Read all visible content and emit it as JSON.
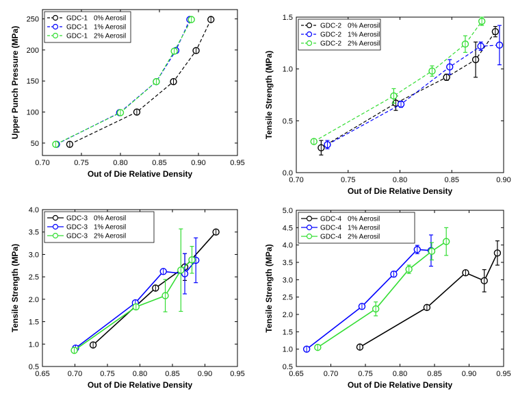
{
  "chart_data": [
    {
      "type": "line",
      "xlabel": "Out of Die Relative Density",
      "ylabel": "Upper Punch Pressure (MPa)",
      "xlim": [
        0.7,
        0.95
      ],
      "ylim": [
        30,
        265
      ],
      "xticks": [
        "0.70",
        "0.75",
        "0.80",
        "0.85",
        "0.90",
        "0.95"
      ],
      "xtick_values": [
        0.7,
        0.75,
        0.8,
        0.85,
        0.9,
        0.95
      ],
      "yticks": [
        "50",
        "100",
        "150",
        "200",
        "250"
      ],
      "ytick_values": [
        50,
        100,
        150,
        200,
        250
      ],
      "legend_placement": "top-left",
      "dashed": true,
      "series": [
        {
          "name": "GDC-1",
          "label": "0% Aerosil",
          "color": "#000000",
          "x": [
            0.735,
            0.821,
            0.868,
            0.897,
            0.916
          ],
          "y": [
            48,
            100,
            149,
            199,
            249
          ]
        },
        {
          "name": "GDC-1",
          "label": "1% Aerosil",
          "color": "#0000ff",
          "x": [
            0.718,
            0.799,
            0.846,
            0.871,
            0.889
          ],
          "y": [
            48,
            99,
            149,
            199,
            249
          ]
        },
        {
          "name": "GDC-1",
          "label": "2% Aerosil",
          "color": "#33dd33",
          "x": [
            0.717,
            0.8,
            0.846,
            0.869,
            0.891
          ],
          "y": [
            48,
            99,
            149,
            198,
            249
          ]
        }
      ]
    },
    {
      "type": "line",
      "xlabel": "Out of Die Relative Density",
      "ylabel": "Tensile Strength (MPa)",
      "xlim": [
        0.7,
        0.9
      ],
      "ylim": [
        0.0,
        1.5
      ],
      "xticks": [
        "0.70",
        "0.75",
        "0.80",
        "0.85",
        "0.90"
      ],
      "xtick_values": [
        0.7,
        0.75,
        0.8,
        0.85,
        0.9
      ],
      "yticks": [
        "0.0",
        "0.5",
        "1.0",
        "1.5"
      ],
      "ytick_values": [
        0.0,
        0.5,
        1.0,
        1.5
      ],
      "legend_placement": "top-left",
      "dashed": true,
      "series": [
        {
          "name": "GDC-2",
          "label": "0% Aerosil",
          "color": "#000000",
          "x": [
            0.724,
            0.796,
            0.845,
            0.873,
            0.892
          ],
          "y": [
            0.24,
            0.67,
            0.92,
            1.09,
            1.36
          ],
          "err": [
            0.07,
            0.07,
            0.03,
            0.17,
            0.05
          ]
        },
        {
          "name": "GDC-2",
          "label": "1% Aerosil",
          "color": "#0000ff",
          "x": [
            0.73,
            0.801,
            0.848,
            0.878,
            0.896
          ],
          "y": [
            0.27,
            0.66,
            1.02,
            1.22,
            1.23
          ],
          "err": [
            0.04,
            0.03,
            0.07,
            0.04,
            0.19
          ]
        },
        {
          "name": "GDC-2",
          "label": "2% Aerosil",
          "color": "#33dd33",
          "x": [
            0.717,
            0.794,
            0.831,
            0.863,
            0.879
          ],
          "y": [
            0.3,
            0.74,
            0.98,
            1.24,
            1.46
          ],
          "err": [
            0.01,
            0.07,
            0.05,
            0.08,
            0.04
          ]
        }
      ]
    },
    {
      "type": "line",
      "xlabel": "Out of Die Relative Density",
      "ylabel": "Tensile Strength (MPa)",
      "xlim": [
        0.65,
        0.95
      ],
      "ylim": [
        0.5,
        4.0
      ],
      "xticks": [
        "0.65",
        "0.70",
        "0.75",
        "0.80",
        "0.85",
        "0.90",
        "0.95"
      ],
      "xtick_values": [
        0.65,
        0.7,
        0.75,
        0.8,
        0.85,
        0.9,
        0.95
      ],
      "yticks": [
        "0.5",
        "1.0",
        "1.5",
        "2.0",
        "2.5",
        "3.0",
        "3.5",
        "4.0"
      ],
      "ytick_values": [
        0.5,
        1.0,
        1.5,
        2.0,
        2.5,
        3.0,
        3.5,
        4.0
      ],
      "legend_placement": "top-left",
      "dashed": false,
      "series": [
        {
          "name": "GDC-3",
          "label": "0% Aerosil",
          "color": "#000000",
          "x": [
            0.728,
            0.824,
            0.869,
            0.917
          ],
          "y": [
            0.98,
            2.25,
            2.72,
            3.5
          ],
          "err": [
            0.03,
            0.03,
            0.3,
            0.03
          ]
        },
        {
          "name": "GDC-3",
          "label": "1% Aerosil",
          "color": "#0000ff",
          "x": [
            0.701,
            0.793,
            0.836,
            0.869,
            0.886
          ],
          "y": [
            0.91,
            1.92,
            2.62,
            2.57,
            2.87
          ],
          "err": [
            0.03,
            0.05,
            0.05,
            0.45,
            0.5
          ]
        },
        {
          "name": "GDC-3",
          "label": "2% Aerosil",
          "color": "#33dd33",
          "x": [
            0.699,
            0.794,
            0.839,
            0.863,
            0.88
          ],
          "y": [
            0.86,
            1.83,
            2.08,
            2.65,
            2.88
          ],
          "err": [
            0.03,
            0.05,
            0.36,
            0.92,
            0.3
          ]
        }
      ]
    },
    {
      "type": "line",
      "xlabel": "Out of Die Relative Density",
      "ylabel": "Tensile Strength (MPa)",
      "xlim": [
        0.65,
        0.95
      ],
      "ylim": [
        0.5,
        5.0
      ],
      "xticks": [
        "0.65",
        "0.70",
        "0.75",
        "0.80",
        "0.85",
        "0.90",
        "0.95"
      ],
      "xtick_values": [
        0.65,
        0.7,
        0.75,
        0.8,
        0.85,
        0.9,
        0.95
      ],
      "yticks": [
        "0.5",
        "1.0",
        "1.5",
        "2.0",
        "2.5",
        "3.0",
        "3.5",
        "4.0",
        "4.5",
        "5.0"
      ],
      "ytick_values": [
        0.5,
        1.0,
        1.5,
        2.0,
        2.5,
        3.0,
        3.5,
        4.0,
        4.5,
        5.0
      ],
      "legend_placement": "top-left",
      "dashed": false,
      "series": [
        {
          "name": "GDC-4",
          "label": "0% Aerosil",
          "color": "#000000",
          "x": [
            0.742,
            0.839,
            0.895,
            0.922,
            0.941
          ],
          "y": [
            1.06,
            2.2,
            3.2,
            2.97,
            3.77
          ],
          "err": [
            0.02,
            0.03,
            0.05,
            0.32,
            0.35
          ]
        },
        {
          "name": "GDC-4",
          "label": "1% Aerosil",
          "color": "#0000ff",
          "x": [
            0.665,
            0.745,
            0.791,
            0.825,
            0.845
          ],
          "y": [
            1.0,
            2.23,
            3.16,
            3.87,
            3.84
          ],
          "err": [
            0.02,
            0.06,
            0.08,
            0.12,
            0.45
          ]
        },
        {
          "name": "GDC-4",
          "label": "2% Aerosil",
          "color": "#33dd33",
          "x": [
            0.681,
            0.765,
            0.813,
            0.846,
            0.867
          ],
          "y": [
            1.05,
            2.16,
            3.3,
            3.82,
            4.1
          ],
          "err": [
            0.02,
            0.2,
            0.12,
            0.25,
            0.4
          ]
        }
      ]
    }
  ]
}
